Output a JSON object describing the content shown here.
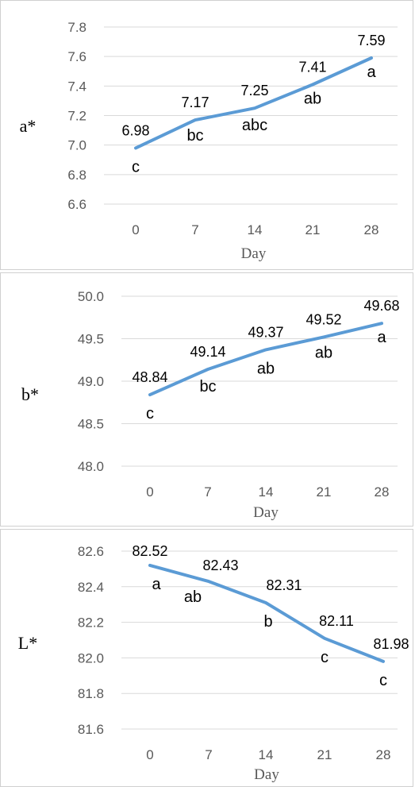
{
  "line_color": "#5b9bd5",
  "chart_data": [
    {
      "type": "line",
      "ylabel": "a*",
      "xlabel": "Day",
      "x": [
        "0",
        "7",
        "14",
        "21",
        "28"
      ],
      "y_ticks": [
        "6.6",
        "6.8",
        "7.0",
        "7.2",
        "7.4",
        "7.6",
        "7.8"
      ],
      "ylim": [
        6.6,
        7.8
      ],
      "grid": true,
      "values": [
        6.98,
        7.17,
        7.25,
        7.41,
        7.59
      ],
      "data_labels": [
        "6.98",
        "7.17",
        "7.25",
        "7.41",
        "7.59"
      ],
      "significance": [
        "c",
        "bc",
        "abc",
        "ab",
        "a"
      ]
    },
    {
      "type": "line",
      "ylabel": "b*",
      "xlabel": "Day",
      "x": [
        "0",
        "7",
        "14",
        "21",
        "28"
      ],
      "y_ticks": [
        "48.0",
        "48.5",
        "49.0",
        "49.5",
        "50.0"
      ],
      "ylim": [
        48.0,
        50.0
      ],
      "grid": true,
      "values": [
        48.84,
        49.14,
        49.37,
        49.52,
        49.68
      ],
      "data_labels": [
        "48.84",
        "49.14",
        "49.37",
        "49.52",
        "49.68"
      ],
      "significance": [
        "c",
        "bc",
        "ab",
        "ab",
        "a"
      ]
    },
    {
      "type": "line",
      "ylabel": "L*",
      "xlabel": "Day",
      "x": [
        "0",
        "7",
        "14",
        "21",
        "28"
      ],
      "y_ticks": [
        "81.6",
        "81.8",
        "82.0",
        "82.2",
        "82.4",
        "82.6"
      ],
      "ylim": [
        81.6,
        82.6
      ],
      "grid": true,
      "values": [
        82.52,
        82.43,
        82.31,
        82.11,
        81.98
      ],
      "data_labels": [
        "82.52",
        "82.43",
        "82.31",
        "82.11",
        "81.98"
      ],
      "significance": [
        "a",
        "ab",
        "b",
        "c",
        "c"
      ]
    }
  ]
}
